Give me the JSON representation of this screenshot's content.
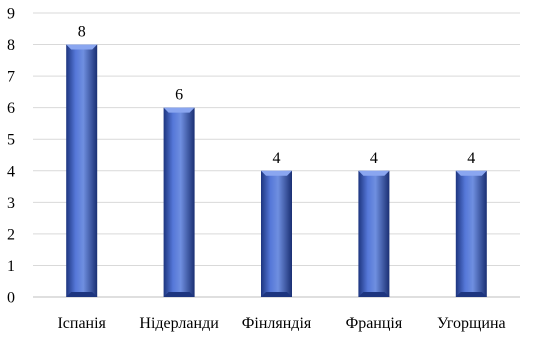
{
  "chart_data": {
    "type": "bar",
    "title": "",
    "xlabel": "",
    "ylabel": "",
    "categories": [
      "Іспанія",
      "Нідерланди",
      "Фінляндія",
      "Франція",
      "Угорщина"
    ],
    "values": [
      8,
      6,
      4,
      4,
      4
    ],
    "ylim": [
      0,
      9
    ],
    "yticks": [
      0,
      1,
      2,
      3,
      4,
      5,
      6,
      7,
      8,
      9
    ],
    "grid": true,
    "legend": "none",
    "data_labels": true,
    "colors": {
      "bar_light": "#6f8fe0",
      "bar_mid": "#3a5bc7",
      "bar_dark": "#1d357f",
      "bar_top": "#8aa6f0"
    }
  }
}
